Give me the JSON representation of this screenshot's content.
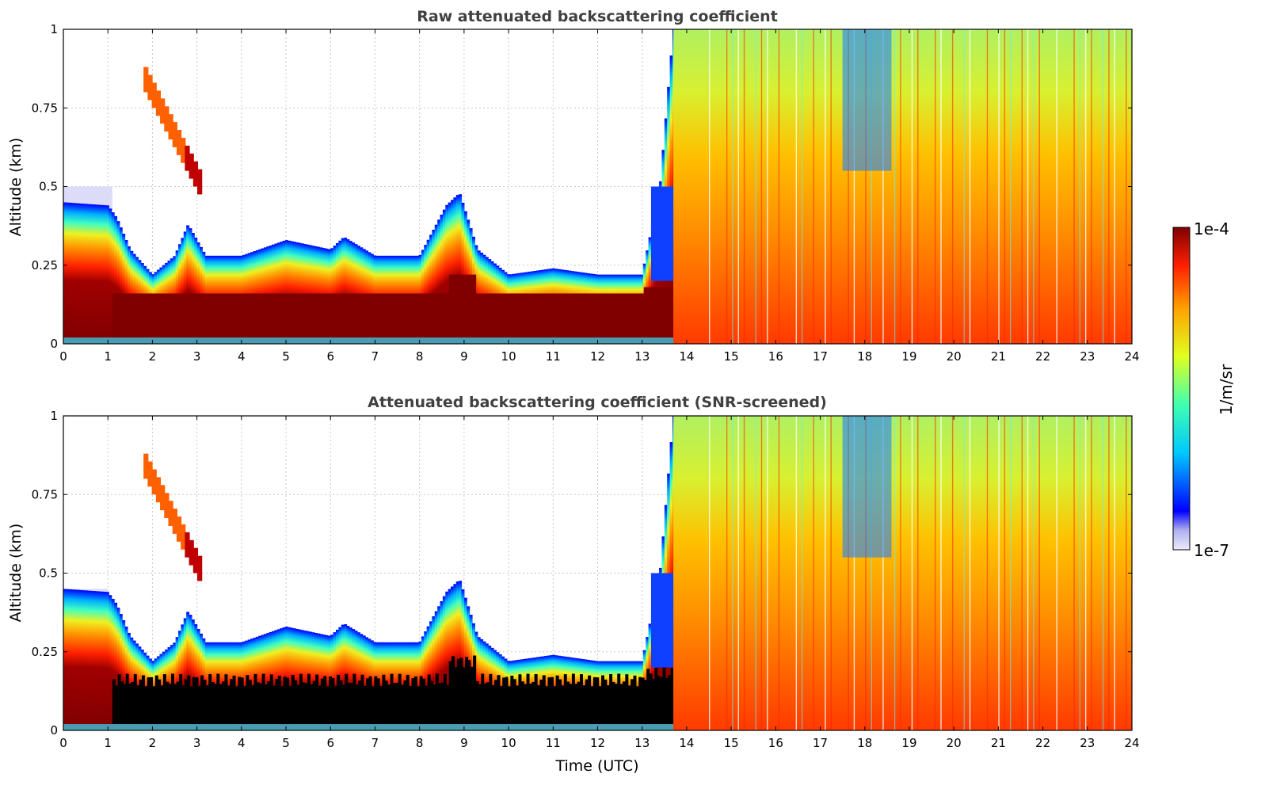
{
  "chart_data": [
    {
      "type": "heatmap",
      "title": "Raw attenuated backscattering coefficient",
      "ylabel": "Altitude (km)",
      "xlabel": "",
      "xlim": [
        0,
        24
      ],
      "ylim": [
        0,
        1
      ],
      "x_ticks": [
        "0",
        "1",
        "2",
        "3",
        "4",
        "5",
        "6",
        "7",
        "8",
        "9",
        "10",
        "11",
        "12",
        "13",
        "14",
        "15",
        "16",
        "17",
        "18",
        "19",
        "20",
        "21",
        "22",
        "23",
        "24"
      ],
      "y_ticks": [
        "0",
        "0.25",
        "0.5",
        "0.75",
        "1"
      ],
      "grid": true,
      "screened": false,
      "features": {
        "aerosol_layer_top_km": [
          {
            "t": 0.0,
            "top": 0.45
          },
          {
            "t": 1.0,
            "top": 0.44
          },
          {
            "t": 1.2,
            "top": 0.4
          },
          {
            "t": 1.5,
            "top": 0.3
          },
          {
            "t": 2.0,
            "top": 0.22
          },
          {
            "t": 2.5,
            "top": 0.28
          },
          {
            "t": 2.8,
            "top": 0.38
          },
          {
            "t": 3.2,
            "top": 0.28
          },
          {
            "t": 4.0,
            "top": 0.28
          },
          {
            "t": 5.0,
            "top": 0.33
          },
          {
            "t": 6.0,
            "top": 0.3
          },
          {
            "t": 6.3,
            "top": 0.34
          },
          {
            "t": 7.0,
            "top": 0.28
          },
          {
            "t": 8.0,
            "top": 0.28
          },
          {
            "t": 8.6,
            "top": 0.44
          },
          {
            "t": 8.9,
            "top": 0.48
          },
          {
            "t": 9.3,
            "top": 0.3
          },
          {
            "t": 10.0,
            "top": 0.22
          },
          {
            "t": 11.0,
            "top": 0.24
          },
          {
            "t": 12.0,
            "top": 0.22
          },
          {
            "t": 13.0,
            "top": 0.22
          },
          {
            "t": 13.4,
            "top": 0.5
          },
          {
            "t": 13.7,
            "top": 1.0
          },
          {
            "t": 24.0,
            "top": 1.0
          }
        ],
        "elevated_layer": {
          "t_start": 1.8,
          "t_end": 3.1,
          "alt_start_km": 0.85,
          "alt_end_km": 0.5
        },
        "dense_layer_top_km": 0.16,
        "cloud_region_start_utc": 13.7
      }
    },
    {
      "type": "heatmap",
      "title": "Attenuated backscattering coefficient (SNR-screened)",
      "ylabel": "Altitude (km)",
      "xlabel": "Time (UTC)",
      "xlim": [
        0,
        24
      ],
      "ylim": [
        0,
        1
      ],
      "x_ticks": [
        "0",
        "1",
        "2",
        "3",
        "4",
        "5",
        "6",
        "7",
        "8",
        "9",
        "10",
        "11",
        "12",
        "13",
        "14",
        "15",
        "16",
        "17",
        "18",
        "19",
        "20",
        "21",
        "22",
        "23",
        "24"
      ],
      "y_ticks": [
        "0",
        "0.25",
        "0.5",
        "0.75",
        "1"
      ],
      "grid": true,
      "screened": true,
      "features": {
        "saturated_color": "#000000",
        "cloud_region_start_utc": 13.7
      }
    }
  ],
  "colorbar": {
    "label": "1/m/sr",
    "max_label": "1e-4",
    "min_label": "1e-7",
    "colormap": "jet",
    "low_color": "#e6e6fa"
  }
}
